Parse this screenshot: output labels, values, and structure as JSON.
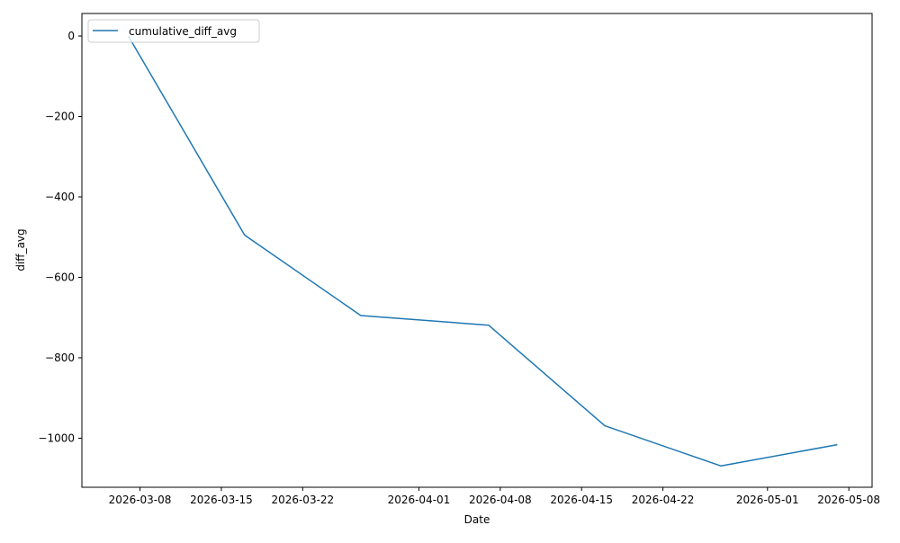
{
  "chart_data": {
    "type": "line",
    "title": "",
    "xlabel": "Date",
    "ylabel": "diff_avg",
    "x_type": "date",
    "xlim": [
      "2026-03-03",
      "2026-05-10"
    ],
    "ylim": [
      -1122,
      56
    ],
    "grid": false,
    "legend": {
      "placement": "upper-left",
      "entries": [
        "cumulative_diff_avg"
      ]
    },
    "x_ticks": [
      "2026-03-08",
      "2026-03-15",
      "2026-03-22",
      "2026-04-01",
      "2026-04-08",
      "2026-04-15",
      "2026-04-22",
      "2026-05-01",
      "2026-05-08"
    ],
    "y_ticks": [
      0,
      -200,
      -400,
      -600,
      -800,
      -1000
    ],
    "y_tick_labels": [
      "0",
      "−200",
      "−400",
      "−600",
      "−800",
      "−1000"
    ],
    "series": [
      {
        "name": "cumulative_diff_avg",
        "color": "#1f77b4",
        "x": [
          "2026-03-07",
          "2026-03-17",
          "2026-03-27",
          "2026-04-07",
          "2026-04-17",
          "2026-04-27",
          "2026-05-07"
        ],
        "y": [
          0,
          -495,
          -695,
          -719,
          -969,
          -1069,
          -1016
        ]
      }
    ]
  }
}
